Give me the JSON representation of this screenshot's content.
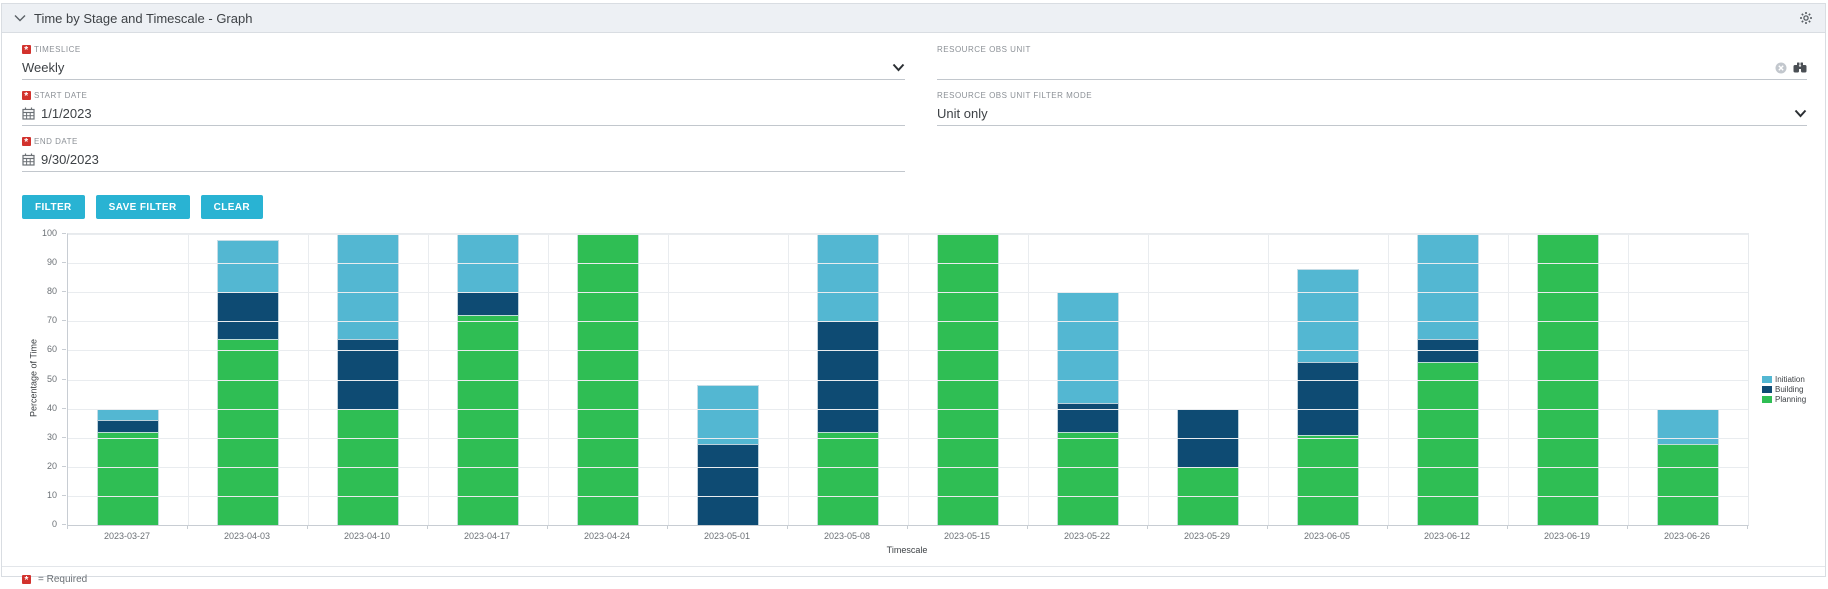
{
  "panel": {
    "title": "Time by Stage and Timescale - Graph"
  },
  "icons": {
    "collapse": "chevron-down",
    "settings": "gear",
    "date": "calendar",
    "clear": "circle-x",
    "browse": "binoculars",
    "dropdown": "chevron-down",
    "required": "asterisk"
  },
  "filter": {
    "timeslice": {
      "label": "TIMESLICE",
      "value": "Weekly",
      "required": true
    },
    "start_date": {
      "label": "START DATE",
      "value": "1/1/2023",
      "required": true
    },
    "end_date": {
      "label": "END DATE",
      "value": "9/30/2023",
      "required": true
    },
    "resource_obs_unit": {
      "label": "RESOURCE OBS UNIT",
      "value": "",
      "required": false
    },
    "resource_obs_unit_filter_mode": {
      "label": "RESOURCE OBS UNIT FILTER MODE",
      "value": "Unit only",
      "required": false
    },
    "buttons": {
      "filter": "FILTER",
      "save_filter": "SAVE FILTER",
      "clear": "CLEAR"
    }
  },
  "footer": {
    "required_note": "= Required"
  },
  "colors": {
    "accent": "#29b3d3",
    "required_red": "#d2322d",
    "header_bg": "#edf0f4",
    "planning_green": "#2fbe54",
    "building_dark_blue": "#0e4b73",
    "initiation_light_blue": "#53b7d2"
  },
  "chart_data": {
    "type": "bar",
    "stacked": true,
    "title": "",
    "xlabel": "Timescale",
    "ylabel": "Percentage of Time",
    "ylim": [
      0,
      100
    ],
    "ytick_step": 10,
    "grid": true,
    "legend_position": "right",
    "categories": [
      "2023-03-27",
      "2023-04-03",
      "2023-04-10",
      "2023-04-17",
      "2023-04-24",
      "2023-05-01",
      "2023-05-08",
      "2023-05-15",
      "2023-05-22",
      "2023-05-29",
      "2023-06-05",
      "2023-06-12",
      "2023-06-19",
      "2023-06-26"
    ],
    "series": [
      {
        "name": "Planning",
        "color": "#2fbe54",
        "values": [
          32,
          64,
          40,
          72,
          100,
          0,
          32,
          100,
          32,
          20,
          31,
          56,
          100,
          28
        ]
      },
      {
        "name": "Building",
        "color": "#0e4b73",
        "values": [
          4,
          16,
          24,
          8,
          0,
          28,
          38,
          0,
          10,
          20,
          25,
          8,
          0,
          0
        ]
      },
      {
        "name": "Initiation",
        "color": "#53b7d2",
        "values": [
          4,
          18,
          36,
          20,
          0,
          20,
          30,
          0,
          38,
          0,
          32,
          36,
          0,
          12
        ]
      }
    ],
    "legend_order": [
      "Initiation",
      "Building",
      "Planning"
    ]
  }
}
